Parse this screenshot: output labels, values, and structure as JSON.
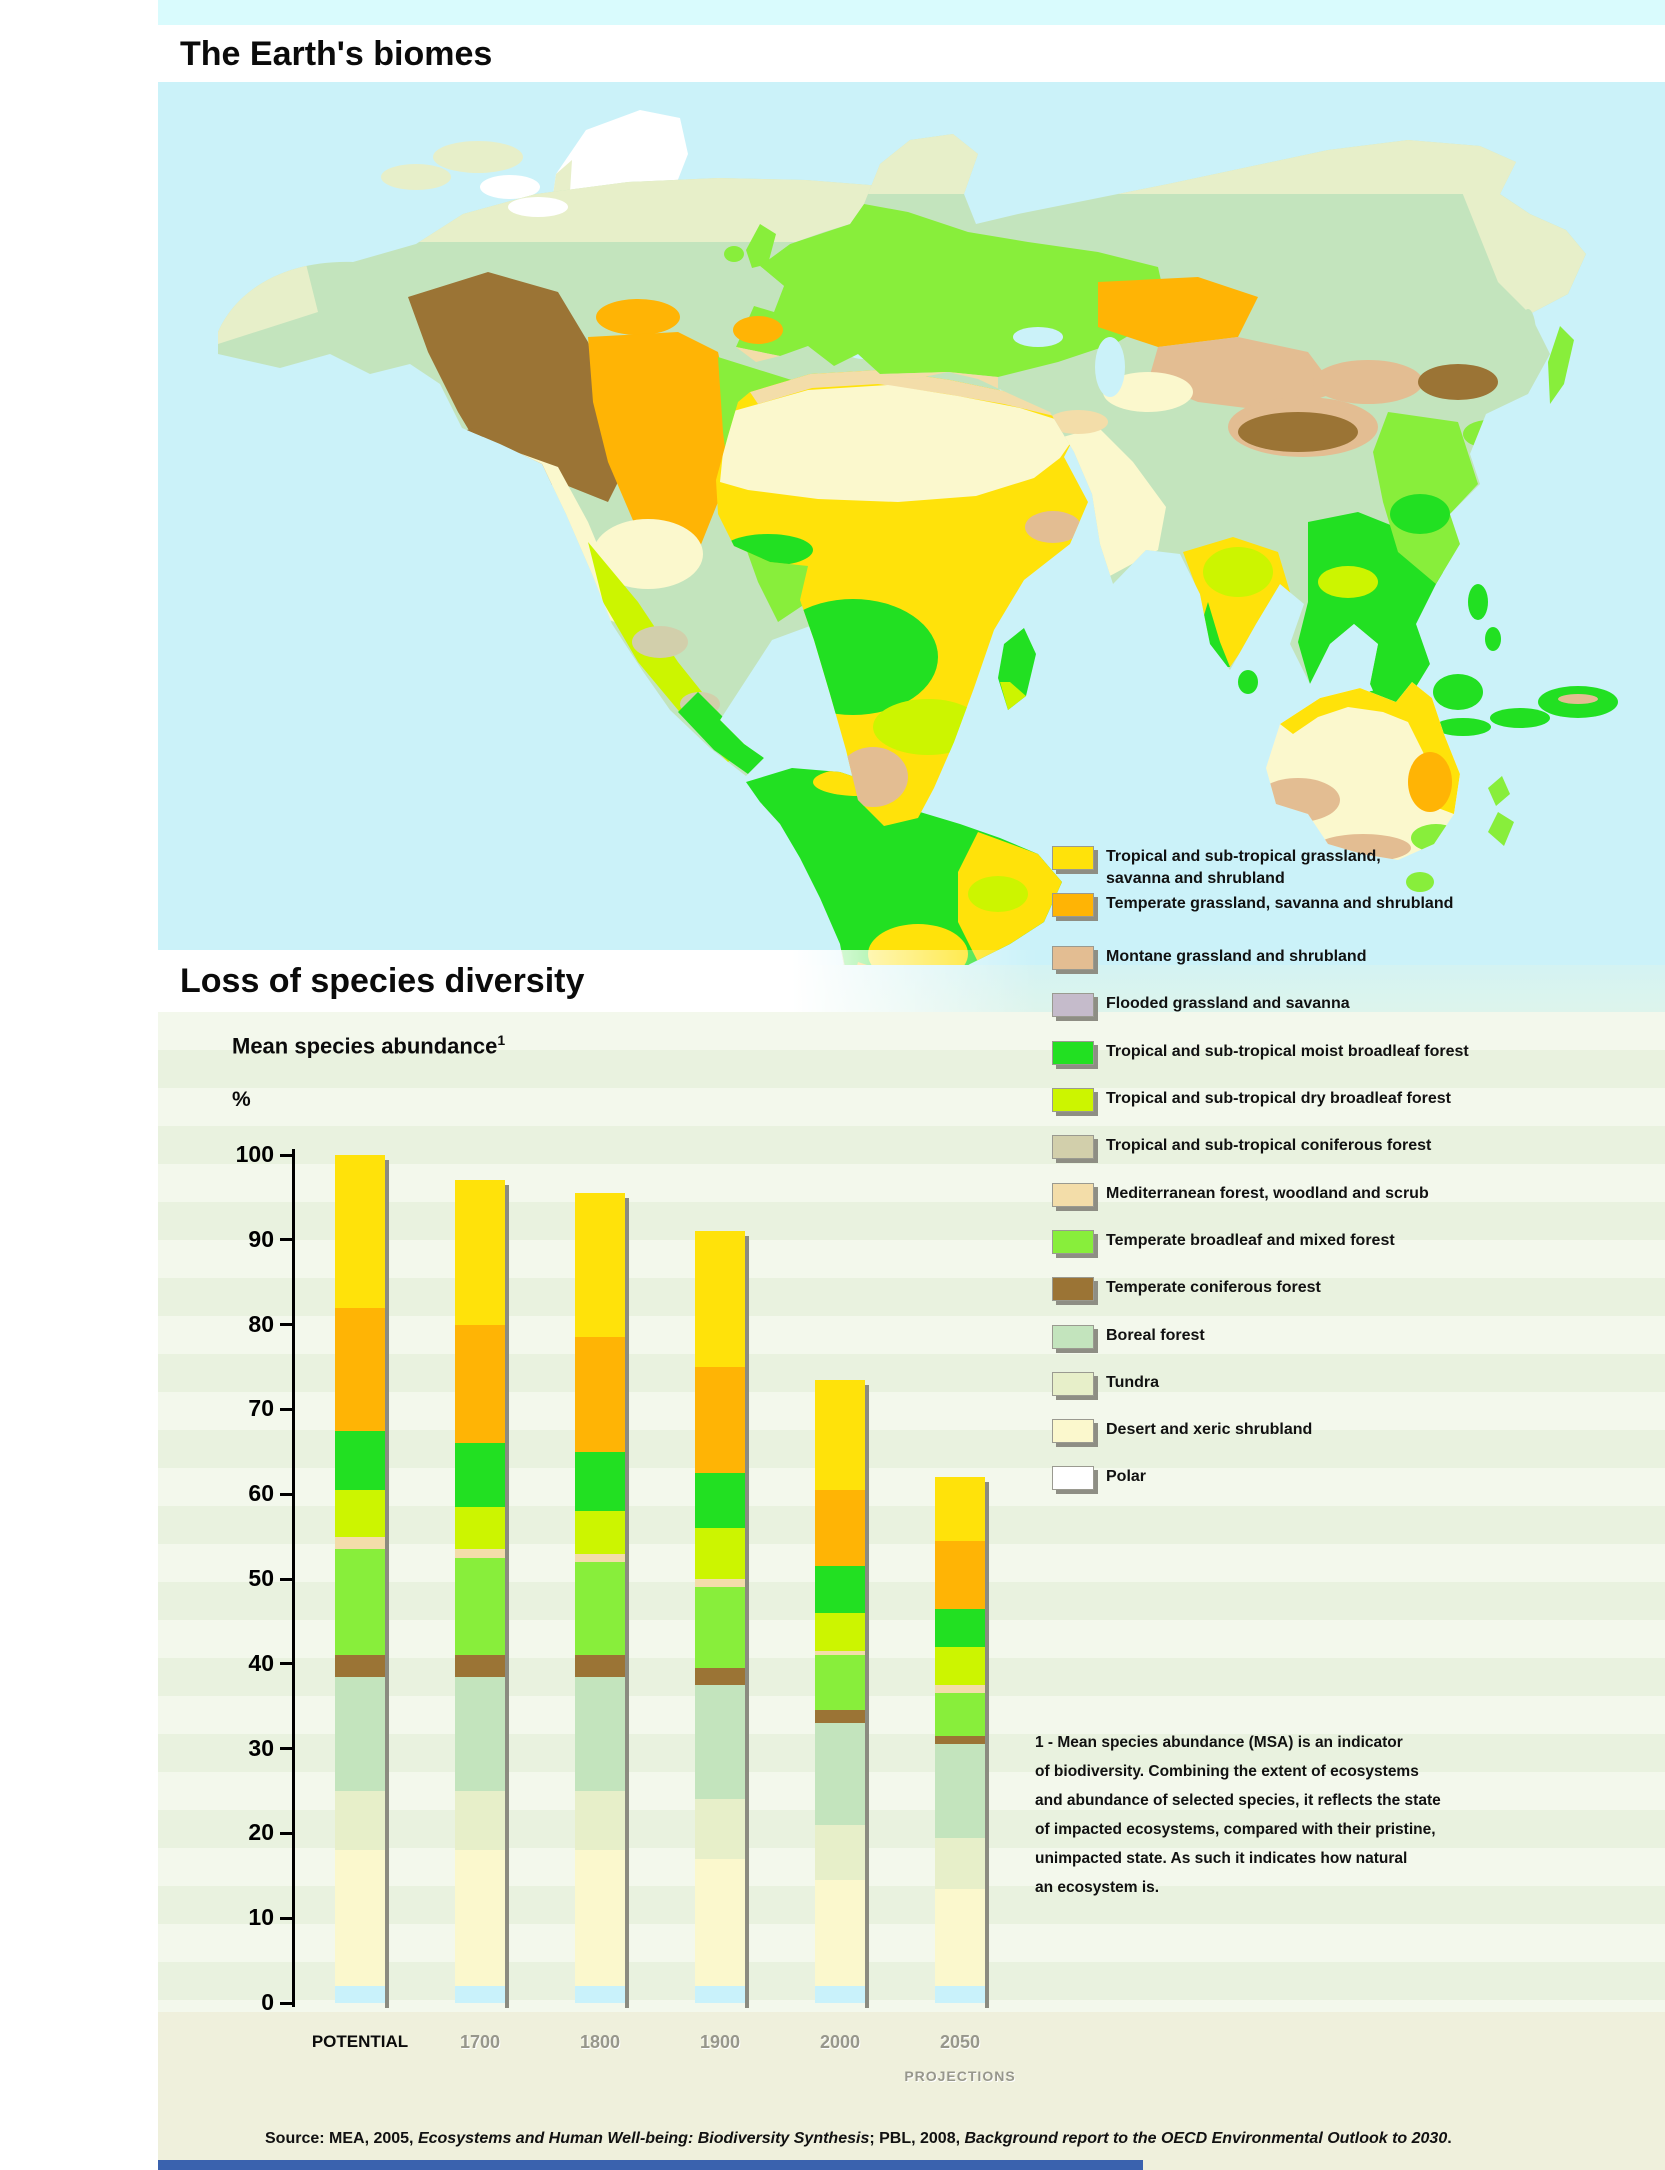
{
  "page": {
    "title_map": "The Earth's biomes",
    "title_chart": "Loss of species diversity",
    "footer_bar_color": "#3A62AE"
  },
  "map": {
    "ocean_color": "#CBF2F9"
  },
  "legend": {
    "items": [
      {
        "key": "trop_grassland",
        "label": "Tropical and sub-tropical grassland,",
        "label2": "savanna and shrubland",
        "color": "#FFE20A"
      },
      {
        "key": "temp_grassland",
        "label": "Temperate grassland, savanna and shrubland",
        "color": "#FFB405"
      },
      {
        "key": "montane",
        "label": "Montane grassland and shrubland",
        "color": "#E3BD92"
      },
      {
        "key": "flooded",
        "label": "Flooded grassland and savanna",
        "color": "#C5BBCB"
      },
      {
        "key": "trop_moist",
        "label": "Tropical and sub-tropical moist broadleaf forest",
        "color": "#22E022"
      },
      {
        "key": "trop_dry",
        "label": "Tropical and sub-tropical dry broadleaf forest",
        "color": "#CCF500"
      },
      {
        "key": "trop_conifer",
        "label": "Tropical and sub-tropical coniferous forest",
        "color": "#D2CFAB"
      },
      {
        "key": "mediterranean",
        "label": "Mediterranean forest, woodland and scrub",
        "color": "#F3DDA9"
      },
      {
        "key": "temp_broadleaf",
        "label": "Temperate broadleaf and mixed forest",
        "color": "#88EE3B"
      },
      {
        "key": "temp_conifer",
        "label": "Temperate coniferous forest",
        "color": "#9B7435"
      },
      {
        "key": "boreal",
        "label": "Boreal forest",
        "color": "#C3E4BD"
      },
      {
        "key": "tundra",
        "label": "Tundra",
        "color": "#E7EFC9"
      },
      {
        "key": "desert",
        "label": "Desert and xeric shrubland",
        "color": "#FBF8CD"
      },
      {
        "key": "polar",
        "label": "Polar",
        "color": "#FFFFFF"
      }
    ]
  },
  "chart": {
    "heading": "Mean species abundance",
    "heading_superscript": "1",
    "unit_label": "%",
    "y_ticks": [
      100,
      90,
      80,
      70,
      60,
      50,
      40,
      30,
      20,
      10,
      0
    ]
  },
  "chart_data": {
    "type": "stacked-bar",
    "title": "Loss of species diversity",
    "ylabel": "Mean species abundance (%)",
    "ylim": [
      0,
      100
    ],
    "grid": false,
    "categories": [
      "POTENTIAL",
      "1700",
      "1800",
      "1900",
      "2000",
      "2050"
    ],
    "category_note": "PROJECTIONS",
    "totals": [
      100,
      97,
      95.5,
      91,
      73.5,
      62
    ],
    "series": [
      {
        "key": "polar",
        "name": "Polar",
        "bar_color": "#C9F2FB",
        "values": [
          2,
          2,
          2,
          2,
          2,
          2
        ]
      },
      {
        "key": "desert",
        "name": "Desert and xeric shrubland",
        "values": [
          16,
          16,
          16,
          15,
          12.5,
          11.5
        ]
      },
      {
        "key": "tundra",
        "name": "Tundra",
        "values": [
          7,
          7,
          7,
          7,
          6.5,
          6
        ]
      },
      {
        "key": "boreal",
        "name": "Boreal forest",
        "values": [
          13.5,
          13.5,
          13.5,
          13.5,
          12,
          11
        ]
      },
      {
        "key": "temp_conifer",
        "name": "Temperate coniferous forest",
        "values": [
          2.5,
          2.5,
          2.5,
          2,
          1.5,
          1
        ]
      },
      {
        "key": "temp_broadleaf",
        "name": "Temperate broadleaf and mixed forest",
        "values": [
          12.5,
          11.5,
          11,
          9.5,
          6.5,
          5
        ]
      },
      {
        "key": "mediterranean",
        "name": "Mediterranean forest, woodland and scrub",
        "values": [
          1.5,
          1,
          1,
          1,
          0.5,
          1
        ]
      },
      {
        "key": "trop_dry",
        "name": "Tropical and sub-tropical dry broadleaf forest",
        "values": [
          5.5,
          5,
          5,
          6,
          4.5,
          4.5
        ]
      },
      {
        "key": "trop_moist",
        "name": "Tropical and sub-tropical moist broadleaf forest",
        "values": [
          7,
          7.5,
          7,
          6.5,
          5.5,
          4.5
        ]
      },
      {
        "key": "temp_grassland",
        "name": "Temperate grassland, savanna and shrubland",
        "values": [
          14.5,
          14,
          13.5,
          12.5,
          9,
          8
        ]
      },
      {
        "key": "trop_grassland",
        "name": "Tropical and sub-tropical grassland, savanna and shrubland",
        "values": [
          18,
          17,
          17,
          16,
          13,
          7.5
        ]
      }
    ]
  },
  "footnote": {
    "lines": [
      "1 - Mean species abundance (MSA) is an indicator",
      "of biodiversity. Combining the extent of ecosystems",
      "and abundance of selected species, it reflects the state",
      "of impacted ecosystems, compared with their pristine,",
      "unimpacted state. As such it indicates how natural",
      "an ecosystem is."
    ]
  },
  "source": {
    "prefix": "Source: MEA, 2005, ",
    "italic1": "Ecosystems and Human Well-being: Biodiversity Synthesis",
    "mid": "; PBL, 2008, ",
    "italic2": "Background report to the OECD Environmental Outlook to 2030",
    "suffix": "."
  }
}
